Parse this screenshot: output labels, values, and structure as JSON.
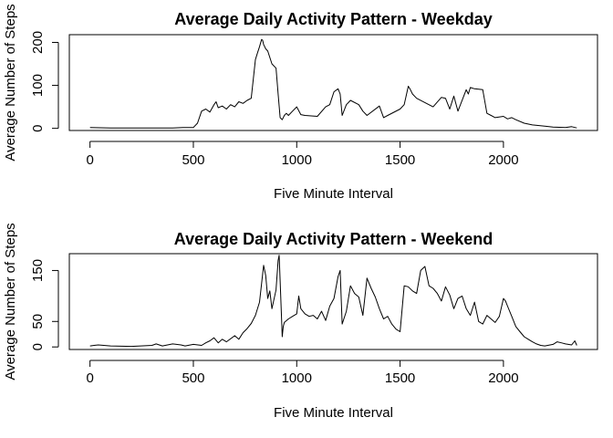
{
  "chart_data": [
    {
      "type": "line",
      "title": "Average Daily Activity Pattern - Weekday",
      "xlabel": "Five Minute Interval",
      "ylabel": "Average Number of Steps",
      "xlim": [
        -100,
        2455
      ],
      "ylim": [
        -5,
        218
      ],
      "xticks": [
        0,
        500,
        1000,
        1500,
        2000
      ],
      "yticks": [
        0,
        100,
        200
      ],
      "series": [
        {
          "x": [
            0,
            100,
            200,
            300,
            400,
            450,
            500,
            520,
            540,
            560,
            580,
            600,
            610,
            620,
            640,
            660,
            680,
            700,
            720,
            740,
            760,
            780,
            800,
            810,
            820,
            830,
            835,
            840,
            850,
            860,
            880,
            900,
            910,
            920,
            930,
            940,
            950,
            960,
            980,
            1000,
            1020,
            1040,
            1100,
            1140,
            1160,
            1180,
            1200,
            1210,
            1220,
            1240,
            1260,
            1300,
            1320,
            1340,
            1400,
            1420,
            1440,
            1500,
            1520,
            1540,
            1550,
            1560,
            1580,
            1620,
            1660,
            1700,
            1720,
            1740,
            1760,
            1780,
            1820,
            1830,
            1840,
            1860,
            1900,
            1920,
            1940,
            1960,
            2000,
            2020,
            2040,
            2060,
            2100,
            2140,
            2200,
            2240,
            2300,
            2330,
            2355
          ],
          "y": [
            2,
            1,
            1,
            1,
            1,
            2,
            2,
            12,
            40,
            45,
            38,
            55,
            62,
            48,
            52,
            45,
            55,
            50,
            62,
            58,
            65,
            70,
            160,
            175,
            190,
            207,
            205,
            195,
            185,
            180,
            150,
            140,
            80,
            25,
            20,
            30,
            35,
            30,
            40,
            50,
            32,
            30,
            28,
            50,
            55,
            85,
            92,
            80,
            30,
            55,
            65,
            55,
            40,
            30,
            52,
            25,
            30,
            45,
            55,
            98,
            90,
            80,
            70,
            60,
            50,
            72,
            70,
            45,
            75,
            40,
            90,
            80,
            95,
            92,
            90,
            35,
            30,
            25,
            28,
            22,
            25,
            20,
            12,
            8,
            5,
            3,
            2,
            4,
            1
          ]
        }
      ]
    },
    {
      "type": "line",
      "title": "Average Daily Activity Pattern - Weekend",
      "xlabel": "Five Minute Interval",
      "ylabel": "Average Number of Steps",
      "xlim": [
        -100,
        2455
      ],
      "ylim": [
        -5,
        183
      ],
      "xticks": [
        0,
        500,
        1000,
        1500,
        2000
      ],
      "yticks": [
        0,
        50,
        150
      ],
      "series": [
        {
          "x": [
            0,
            20,
            40,
            100,
            200,
            300,
            320,
            350,
            400,
            440,
            460,
            500,
            540,
            560,
            580,
            600,
            620,
            640,
            660,
            700,
            720,
            740,
            760,
            780,
            800,
            820,
            830,
            840,
            850,
            860,
            870,
            880,
            900,
            910,
            915,
            920,
            930,
            935,
            940,
            960,
            980,
            1000,
            1010,
            1020,
            1040,
            1060,
            1080,
            1100,
            1120,
            1140,
            1160,
            1180,
            1200,
            1210,
            1220,
            1240,
            1260,
            1280,
            1300,
            1320,
            1340,
            1360,
            1380,
            1400,
            1420,
            1440,
            1460,
            1480,
            1500,
            1520,
            1540,
            1560,
            1580,
            1600,
            1620,
            1640,
            1660,
            1680,
            1700,
            1720,
            1740,
            1760,
            1780,
            1800,
            1820,
            1840,
            1860,
            1880,
            1900,
            1920,
            1940,
            1960,
            1980,
            2000,
            2010,
            2020,
            2040,
            2060,
            2080,
            2100,
            2120,
            2140,
            2160,
            2180,
            2200,
            2240,
            2260,
            2280,
            2300,
            2330,
            2345,
            2355
          ],
          "y": [
            2,
            3,
            4,
            2,
            1,
            3,
            6,
            2,
            6,
            4,
            2,
            5,
            3,
            8,
            12,
            18,
            8,
            15,
            10,
            22,
            15,
            28,
            36,
            46,
            62,
            88,
            125,
            160,
            140,
            95,
            110,
            75,
            112,
            170,
            180,
            130,
            20,
            40,
            48,
            55,
            60,
            65,
            100,
            75,
            65,
            60,
            62,
            55,
            70,
            52,
            80,
            95,
            138,
            150,
            45,
            70,
            120,
            105,
            98,
            62,
            135,
            115,
            98,
            75,
            55,
            60,
            45,
            35,
            30,
            120,
            118,
            110,
            105,
            150,
            158,
            120,
            115,
            105,
            90,
            118,
            102,
            75,
            95,
            100,
            75,
            62,
            88,
            50,
            45,
            62,
            55,
            48,
            60,
            95,
            90,
            80,
            60,
            40,
            30,
            20,
            15,
            10,
            6,
            3,
            2,
            5,
            10,
            8,
            6,
            4,
            12,
            3
          ]
        }
      ]
    }
  ]
}
